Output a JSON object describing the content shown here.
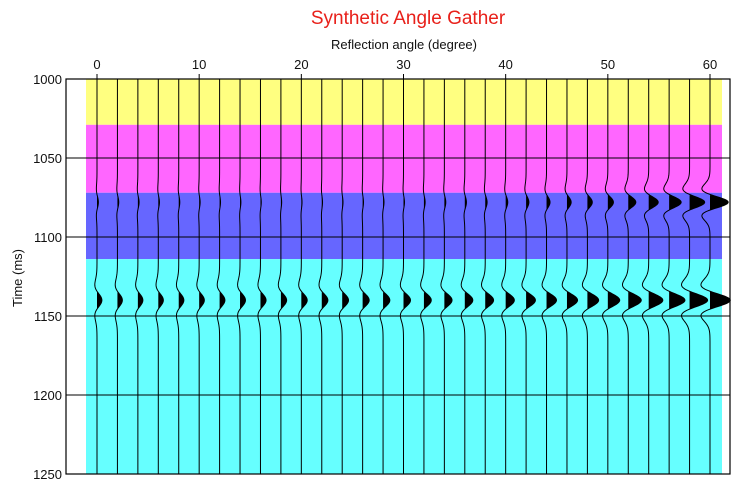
{
  "chart_data": {
    "type": "area",
    "title": "Synthetic Angle Gather",
    "xlabel": "Reflection angle (degree)",
    "ylabel": "Time (ms)",
    "xlim": [
      -1,
      61
    ],
    "ylim": [
      1000,
      1250
    ],
    "x_ticks": [
      0,
      10,
      20,
      30,
      40,
      50,
      60
    ],
    "y_ticks": [
      1000,
      1050,
      1100,
      1150,
      1200,
      1250
    ],
    "grid": true,
    "layers": [
      {
        "top": 1000,
        "bottom": 1029,
        "color": "#ffff80"
      },
      {
        "top": 1029,
        "bottom": 1072,
        "color": "#ff66ff"
      },
      {
        "top": 1072,
        "bottom": 1114,
        "color": "#6666ff"
      },
      {
        "top": 1114,
        "bottom": 1250,
        "color": "#66ffff"
      }
    ],
    "trace_angles": [
      0,
      2,
      4,
      6,
      8,
      10,
      12,
      14,
      16,
      18,
      20,
      22,
      24,
      26,
      28,
      30,
      32,
      34,
      36,
      38,
      40,
      42,
      44,
      46,
      48,
      50,
      52,
      54,
      56,
      58,
      60
    ],
    "events": [
      {
        "time": 1078,
        "amplitude_by_angle": [
          {
            "angle": 0,
            "amp": 0.1
          },
          {
            "angle": 10,
            "amp": 0.07
          },
          {
            "angle": 20,
            "amp": 0.05
          },
          {
            "angle": 30,
            "amp": 0.07
          },
          {
            "angle": 40,
            "amp": 0.15
          },
          {
            "angle": 50,
            "amp": 0.4
          },
          {
            "angle": 55,
            "amp": 0.75
          },
          {
            "angle": 60,
            "amp": 1.3
          }
        ]
      },
      {
        "time": 1140,
        "amplitude_by_angle": [
          {
            "angle": 0,
            "amp": 0.35
          },
          {
            "angle": 10,
            "amp": 0.37
          },
          {
            "angle": 20,
            "amp": 0.42
          },
          {
            "angle": 30,
            "amp": 0.5
          },
          {
            "angle": 40,
            "amp": 0.62
          },
          {
            "angle": 50,
            "amp": 0.85
          },
          {
            "angle": 55,
            "amp": 1.05
          },
          {
            "angle": 60,
            "amp": 1.45
          }
        ]
      }
    ]
  }
}
